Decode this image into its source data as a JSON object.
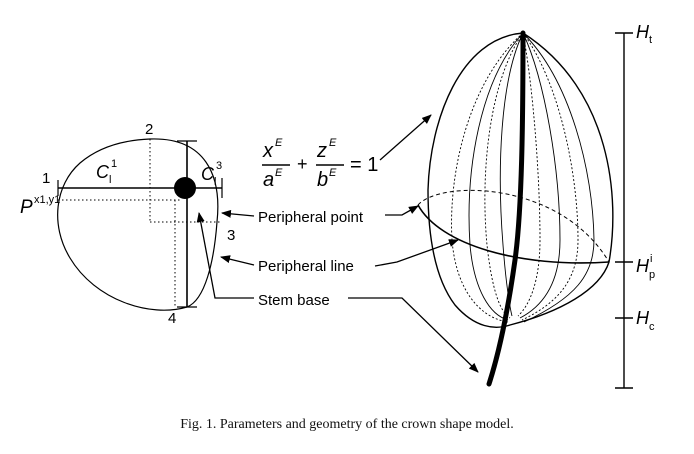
{
  "left_diagram": {
    "point_1": "1",
    "point_2": "2",
    "point_3": "3",
    "point_4": "4",
    "c1_label": "C",
    "c1_sub": "l",
    "c1_sup": "1",
    "c3_label": "C",
    "c3_sub": "l",
    "c3_sup": "3",
    "p_label": "P",
    "p_sup": "x1,y1"
  },
  "equation": {
    "x_num": "x",
    "x_num_exp": "E",
    "x_den": "a",
    "x_den_exp": "E",
    "plus": "+",
    "z_num": "z",
    "z_num_exp": "E",
    "z_den": "b",
    "z_den_exp": "E",
    "equals_one": "= 1"
  },
  "labels": {
    "peripheral_point": "Peripheral point",
    "peripheral_line": "Peripheral line",
    "stem_base": "Stem base"
  },
  "height_axis": {
    "ht_main": "H",
    "ht_sub": "t",
    "hp_main": "H",
    "hp_sub": "p",
    "hp_sup": "i",
    "hc_main": "H",
    "hc_sub": "c"
  },
  "caption": "Fig. 1. Parameters and geometry of the crown shape model."
}
